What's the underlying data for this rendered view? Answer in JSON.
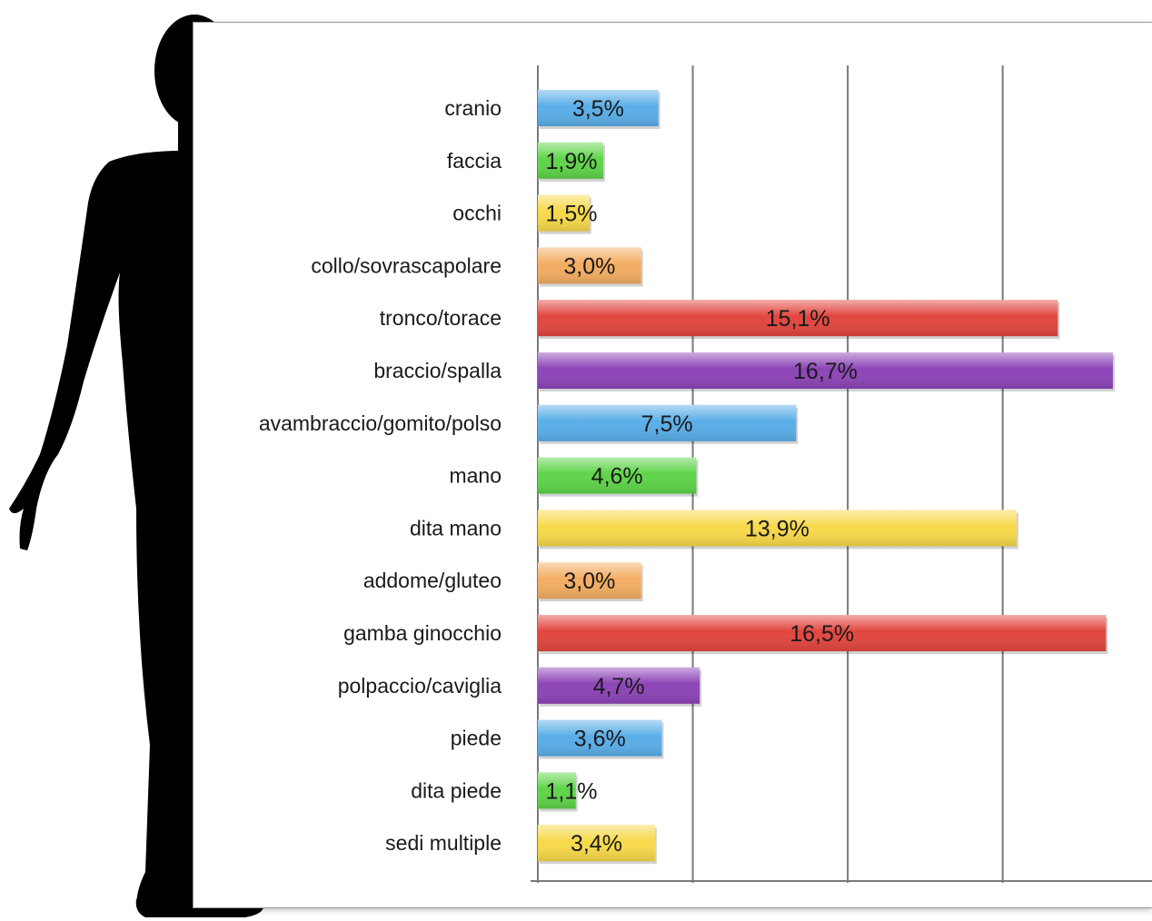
{
  "chart_data": {
    "type": "bar",
    "orientation": "horizontal",
    "categories": [
      "cranio",
      "faccia",
      "occhi",
      "collo/sovrascapolare",
      "tronco/torace",
      "braccio/spalla",
      "avambraccio/gomito/polso",
      "mano",
      "dita mano",
      "addome/gluteo",
      "gamba ginocchio",
      "polpaccio/caviglia",
      "piede",
      "dita piede",
      "sedi multiple"
    ],
    "values": [
      3.5,
      1.9,
      1.5,
      3.0,
      15.1,
      16.7,
      7.5,
      4.6,
      13.9,
      3.0,
      16.5,
      4.7,
      3.6,
      1.1,
      3.4
    ],
    "value_labels": [
      "3,5%",
      "1,9%",
      "1,5%",
      "3,0%",
      "15,1%",
      "16,7%",
      "7,5%",
      "4,6%",
      "13,9%",
      "3,0%",
      "16,5%",
      "4,7%",
      "3,6%",
      "1,1%",
      "3,4%"
    ],
    "bar_colors": [
      "#5aaee8",
      "#5fd44a",
      "#f7d94a",
      "#f3ad62",
      "#e2463f",
      "#8d45b7",
      "#5aaee8",
      "#5fd44a",
      "#f7d94a",
      "#f3ad62",
      "#e2463f",
      "#8d45b7",
      "#5aaee8",
      "#5fd44a",
      "#f7d94a"
    ],
    "xlim": [
      0,
      18
    ],
    "grid": true,
    "title": "",
    "xlabel": "",
    "ylabel": "",
    "decoration": "black human silhouette"
  }
}
